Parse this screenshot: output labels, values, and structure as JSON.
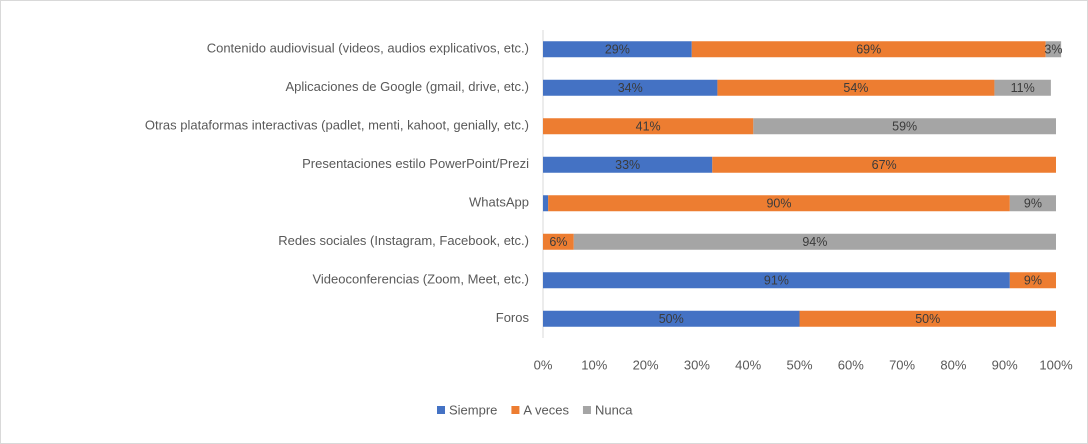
{
  "chart_data": {
    "type": "stacked_bar_horizontal",
    "categories": [
      "Contenido audiovisual (videos, audios explicativos, etc.)",
      "Aplicaciones de Google (gmail, drive, etc.)",
      "Otras plataformas interactivas (padlet, menti, kahoot, genially, etc.)",
      "Presentaciones estilo PowerPoint/Prezi",
      "WhatsApp",
      "Redes sociales (Instagram, Facebook, etc.)",
      "Videoconferencias (Zoom, Meet, etc.)",
      "Foros"
    ],
    "series": [
      {
        "name": "Siempre",
        "color": "#4472c4",
        "values": [
          29,
          34,
          0,
          33,
          1,
          0,
          91,
          50
        ],
        "value_labels": [
          "29%",
          "34%",
          null,
          "33%",
          "1%",
          null,
          "91%",
          "50%"
        ]
      },
      {
        "name": "A veces",
        "color": "#ed7d31",
        "values": [
          69,
          54,
          41,
          67,
          90,
          6,
          9,
          50
        ],
        "value_labels": [
          "69%",
          "54%",
          "41%",
          "67%",
          "90%",
          "6%",
          "9%",
          "50%"
        ]
      },
      {
        "name": "Nunca",
        "color": "#a5a5a5",
        "values": [
          3,
          11,
          59,
          0,
          9,
          94,
          0,
          0
        ],
        "value_labels": [
          "3%",
          "11%",
          "59%",
          null,
          "9%",
          "94%",
          null,
          null
        ]
      }
    ],
    "xlim": [
      0,
      100
    ],
    "xticks": [
      {
        "value": 0,
        "label": "0%"
      },
      {
        "value": 10,
        "label": "10%"
      },
      {
        "value": 20,
        "label": "20%"
      },
      {
        "value": 30,
        "label": "30%"
      },
      {
        "value": 40,
        "label": "40%"
      },
      {
        "value": 50,
        "label": "50%"
      },
      {
        "value": 60,
        "label": "60%"
      },
      {
        "value": 70,
        "label": "70%"
      },
      {
        "value": 80,
        "label": "80%"
      },
      {
        "value": 90,
        "label": "90%"
      },
      {
        "value": 100,
        "label": "100%"
      }
    ],
    "legend": "bottom"
  }
}
